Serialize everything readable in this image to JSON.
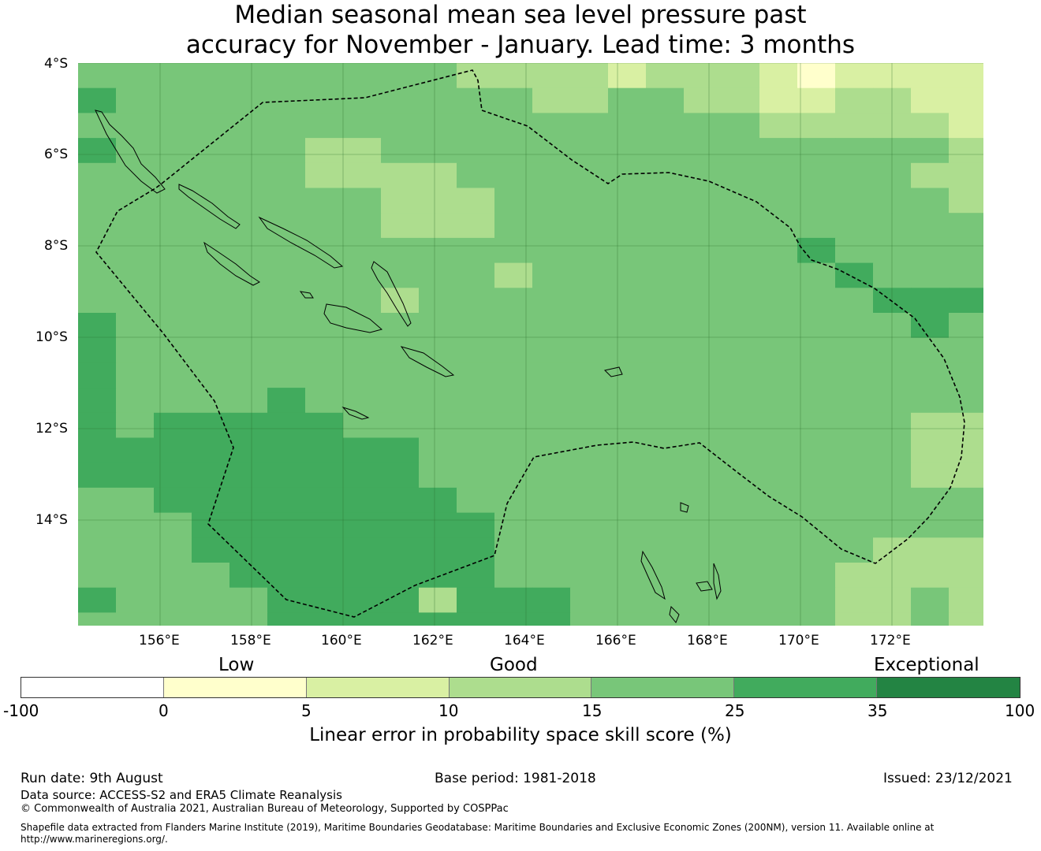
{
  "title": {
    "line1": "Median seasonal mean sea level pressure past",
    "line2": "accuracy for November - January. Lead time: 3 months"
  },
  "map": {
    "lat_labels": [
      "4°S",
      "6°S",
      "8°S",
      "10°S",
      "12°S",
      "14°S"
    ],
    "lon_labels": [
      "156°E",
      "158°E",
      "160°E",
      "162°E",
      "164°E",
      "166°E",
      "168°E",
      "170°E",
      "172°E"
    ],
    "extent": {
      "lon_min": 154.2,
      "lon_max": 174.0,
      "lat_min": -16.3,
      "lat_max": -4.0
    },
    "grid_lines": true
  },
  "colorbar": {
    "category_labels": [
      "Low",
      "Good",
      "Exceptional"
    ],
    "ticks": [
      "-100",
      "0",
      "5",
      "10",
      "15",
      "25",
      "35",
      "100"
    ],
    "label": "Linear error in probability space skill score (%)",
    "colors": [
      "#ffffff",
      "#ffffcc",
      "#d9f0a3",
      "#addd8e",
      "#78c679",
      "#41ab5d",
      "#238443"
    ]
  },
  "footer": {
    "run_date": "Run date: 9th August",
    "base_period": "Base period: 1981-2018",
    "issued": "Issued: 23/12/2021",
    "data_source": "Data source: ACCESS-S2 and ERA5 Climate Reanalysis",
    "copyright": "© Commonwealth of Australia 2021, Australian Bureau of Meteorology, Supported by COSPPac",
    "shapefile_line1": "Shapefile data extracted from Flanders Marine Institute (2019), Maritime Boundaries Geodatabase: Maritime Boundaries and Exclusive Economic Zones (200NM), version 11. Available online at",
    "shapefile_line2": "http://www.marineregions.org/."
  }
}
